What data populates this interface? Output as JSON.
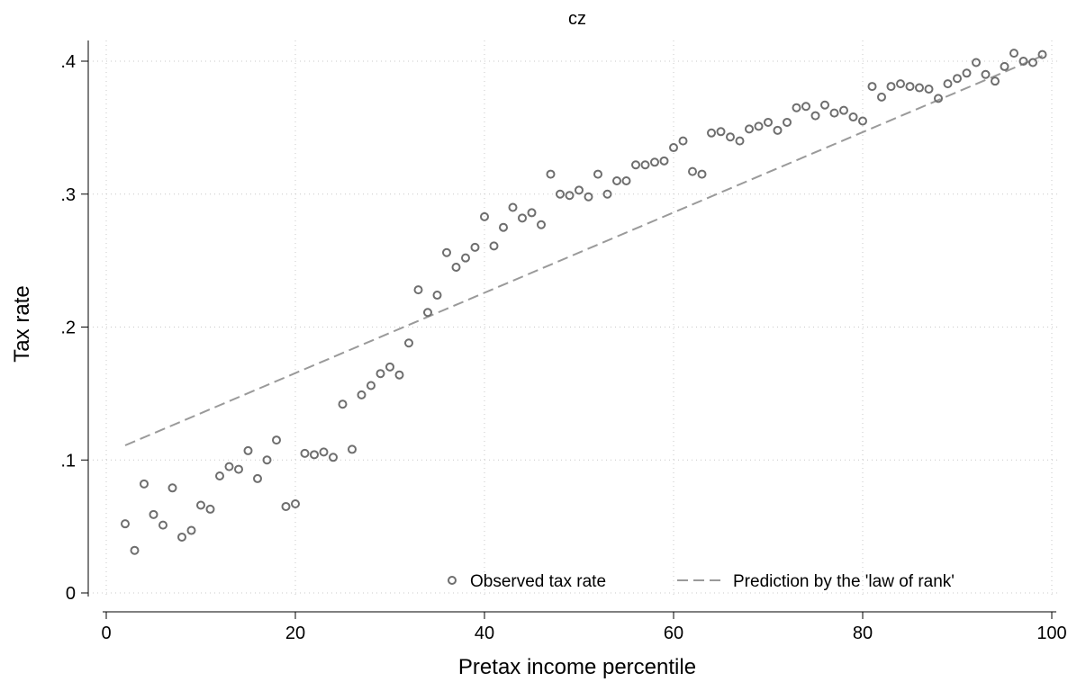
{
  "chart_data": {
    "type": "scatter",
    "title": "cz",
    "xlabel": "Pretax income percentile",
    "ylabel": "Tax rate",
    "xlim": [
      0,
      100
    ],
    "ylim": [
      0,
      0.4
    ],
    "x_ticks": [
      {
        "value": 0,
        "label": "0"
      },
      {
        "value": 20,
        "label": "20"
      },
      {
        "value": 40,
        "label": "40"
      },
      {
        "value": 60,
        "label": "60"
      },
      {
        "value": 80,
        "label": "80"
      },
      {
        "value": 100,
        "label": "100"
      }
    ],
    "y_ticks": [
      {
        "value": 0,
        "label": "0"
      },
      {
        "value": 0.1,
        "label": ".1"
      },
      {
        "value": 0.2,
        "label": ".2"
      },
      {
        "value": 0.3,
        "label": ".3"
      },
      {
        "value": 0.4,
        "label": ".4"
      }
    ],
    "grid": true,
    "legend_position": "bottom-right inside plot",
    "series": [
      {
        "name": "Observed tax rate",
        "kind": "hollow-circle",
        "color": "#6e6e6e",
        "x": [
          2,
          3,
          4,
          5,
          6,
          7,
          8,
          9,
          10,
          11,
          12,
          13,
          14,
          15,
          16,
          17,
          18,
          19,
          20,
          21,
          22,
          23,
          24,
          25,
          26,
          27,
          28,
          29,
          30,
          31,
          32,
          33,
          34,
          35,
          36,
          37,
          38,
          39,
          40,
          41,
          42,
          43,
          44,
          45,
          46,
          47,
          48,
          49,
          50,
          51,
          52,
          53,
          54,
          55,
          56,
          57,
          58,
          59,
          60,
          61,
          62,
          63,
          64,
          65,
          66,
          67,
          68,
          69,
          70,
          71,
          72,
          73,
          74,
          75,
          76,
          77,
          78,
          79,
          80,
          81,
          82,
          83,
          84,
          85,
          86,
          87,
          88,
          89,
          90,
          91,
          92,
          93,
          94,
          95,
          96,
          97,
          98,
          99
        ],
        "y": [
          0.052,
          0.032,
          0.082,
          0.059,
          0.051,
          0.079,
          0.042,
          0.047,
          0.066,
          0.063,
          0.088,
          0.095,
          0.093,
          0.107,
          0.086,
          0.1,
          0.115,
          0.065,
          0.067,
          0.105,
          0.104,
          0.106,
          0.102,
          0.142,
          0.108,
          0.149,
          0.156,
          0.165,
          0.17,
          0.164,
          0.188,
          0.228,
          0.211,
          0.224,
          0.256,
          0.245,
          0.252,
          0.26,
          0.283,
          0.261,
          0.275,
          0.29,
          0.282,
          0.286,
          0.277,
          0.315,
          0.3,
          0.299,
          0.303,
          0.298,
          0.315,
          0.3,
          0.31,
          0.31,
          0.322,
          0.322,
          0.324,
          0.325,
          0.335,
          0.34,
          0.317,
          0.315,
          0.346,
          0.347,
          0.343,
          0.34,
          0.349,
          0.351,
          0.354,
          0.348,
          0.354,
          0.365,
          0.366,
          0.359,
          0.367,
          0.361,
          0.363,
          0.358,
          0.355,
          0.381,
          0.373,
          0.381,
          0.383,
          0.381,
          0.38,
          0.379,
          0.372,
          0.383,
          0.387,
          0.391,
          0.399,
          0.39,
          0.385,
          0.396,
          0.406,
          0.4,
          0.399,
          0.405
        ]
      },
      {
        "name": "Prediction by the 'law of rank'",
        "kind": "dashed-line",
        "color": "#9a9a9a",
        "x": [
          2,
          99
        ],
        "y": [
          0.111,
          0.404
        ]
      }
    ]
  }
}
